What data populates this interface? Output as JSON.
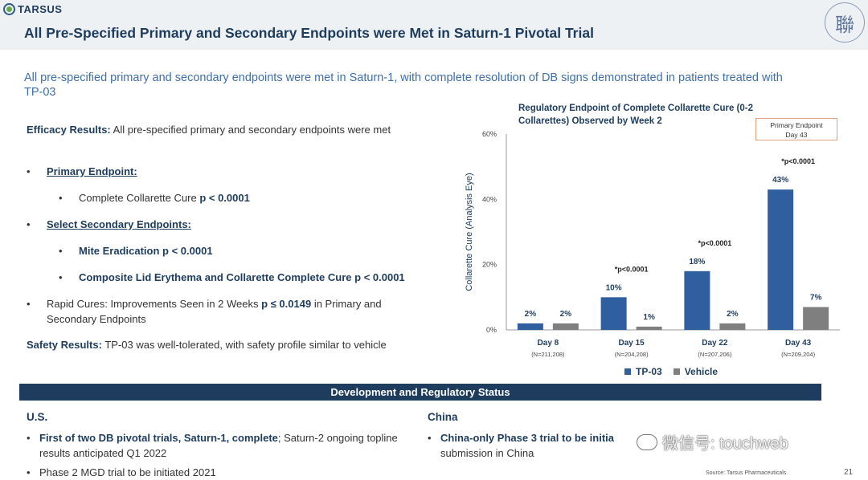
{
  "header": {
    "logo": "TARSUS",
    "title": "All Pre-Specified Primary and Secondary Endpoints were Met in Saturn-1 Pivotal Trial",
    "seal_char": "聯"
  },
  "subtitle": "All pre-specified primary and secondary endpoints were met in Saturn-1, with complete resolution of DB signs demonstrated in patients treated with TP-03",
  "efficacy": {
    "label": "Efficacy Results:",
    "text": "All pre-specified primary and secondary endpoints were met",
    "primary_heading": "Primary Endpoint:",
    "primary_item": "Complete Collarette Cure",
    "primary_p": "p < 0.0001",
    "secondary_heading": "Select Secondary Endpoints:",
    "secondary_item1": "Mite Eradication",
    "secondary_p1": "p < 0.0001",
    "secondary_item2": "Composite Lid Erythema and Collarette Complete Cure",
    "secondary_p2": "p < 0.0001",
    "rapid_text1": "Rapid Cures: Improvements Seen in 2 Weeks",
    "rapid_p": "p ≤ 0.0149",
    "rapid_text2": "in Primary and Secondary Endpoints"
  },
  "safety": {
    "label": "Safety Results:",
    "text": "TP-03 was well-tolerated, with safety profile similar to vehicle"
  },
  "chart_data": {
    "type": "bar",
    "title": "Regulatory Endpoint of Complete Collarette Cure (0-2 Collarettes) Observed by Week 2",
    "ylabel": "Collarette Cure (Analysis Eye)",
    "ylim": [
      0,
      60
    ],
    "yticks": [
      "0%",
      "20%",
      "40%",
      "60%"
    ],
    "categories": [
      "Day 8",
      "Day 15",
      "Day 22",
      "Day 43"
    ],
    "sublabels": [
      "(N=211,208)",
      "(N=204,208)",
      "(N=207,206)",
      "(N=209,204)"
    ],
    "series": [
      {
        "name": "TP-03",
        "values": [
          2,
          10,
          18,
          43
        ],
        "labels": [
          "2%",
          "10%",
          "18%",
          "43%"
        ],
        "color": "#2f5f9e"
      },
      {
        "name": "Vehicle",
        "values": [
          2,
          1,
          2,
          7
        ],
        "labels": [
          "2%",
          "1%",
          "2%",
          "7%"
        ],
        "color": "#7f7f7f"
      }
    ],
    "annotations": [
      "",
      "*p<0.0001",
      "*p<0.0001",
      "*p<0.0001"
    ],
    "annot_box": [
      "Primary Endpoint",
      "Day 43"
    ],
    "legend": "bottom"
  },
  "dev": {
    "bar_title": "Development and Regulatory Status",
    "us_head": "U.S.",
    "us1_bold": "First of two DB pivotal trials, Saturn-1, complete",
    "us1_rest": "; Saturn-2 ongoing topline results anticipated Q1 2022",
    "us2": "Phase 2 MGD trial to be initiated 2021",
    "cn_head": "China",
    "cn1_bold": "China-only Phase 3 trial to be initia",
    "cn1_rest": "submission in China"
  },
  "footer": {
    "source": "Source: Tarsus Pharmaceuticals",
    "page": "21",
    "watermark": "微信号: touchweb"
  }
}
